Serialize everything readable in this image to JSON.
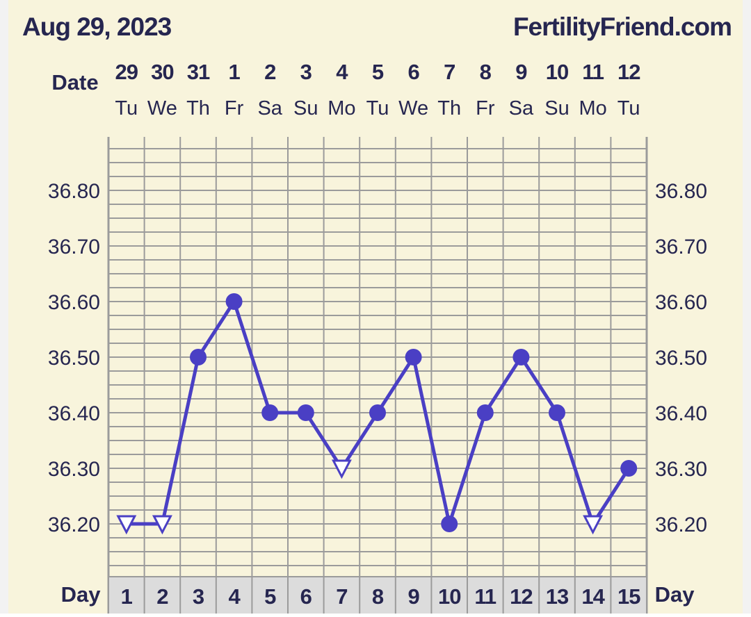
{
  "header": {
    "date_title": "Aug 29, 2023",
    "brand": "FertilityFriend.com",
    "date_row_label": "Date",
    "day_row_label_left": "Day",
    "day_row_label_right": "Day"
  },
  "colors": {
    "background": "#f8f4dc",
    "frame": "#f2f2f2",
    "grid": "#9b9b9b",
    "text": "#262650",
    "series": "#4a3fc4",
    "day_cell": "#dcdcdc"
  },
  "chart_data": {
    "type": "line",
    "x": [
      "29",
      "30",
      "31",
      "1",
      "2",
      "3",
      "4",
      "5",
      "6",
      "7",
      "8",
      "9",
      "10",
      "11",
      "12"
    ],
    "weekdays": [
      "Tu",
      "We",
      "Th",
      "Fr",
      "Sa",
      "Su",
      "Mo",
      "Tu",
      "We",
      "Th",
      "Fr",
      "Sa",
      "Su",
      "Mo",
      "Tu"
    ],
    "cycle_days": [
      "1",
      "2",
      "3",
      "4",
      "5",
      "6",
      "7",
      "8",
      "9",
      "10",
      "11",
      "12",
      "13",
      "14",
      "15"
    ],
    "values": [
      36.2,
      36.2,
      36.5,
      36.6,
      36.4,
      36.4,
      36.3,
      36.4,
      36.5,
      36.2,
      36.4,
      36.5,
      36.4,
      36.2,
      36.3
    ],
    "marker": [
      "open-triangle",
      "open-triangle",
      "filled-circle",
      "filled-circle",
      "filled-circle",
      "filled-circle",
      "open-triangle",
      "filled-circle",
      "filled-circle",
      "filled-circle",
      "filled-circle",
      "filled-circle",
      "filled-circle",
      "open-triangle",
      "filled-circle"
    ],
    "yticks": [
      "36.80",
      "36.70",
      "36.60",
      "36.50",
      "36.40",
      "36.30",
      "36.20"
    ],
    "ylim": [
      36.09,
      36.89
    ],
    "grid": true
  }
}
